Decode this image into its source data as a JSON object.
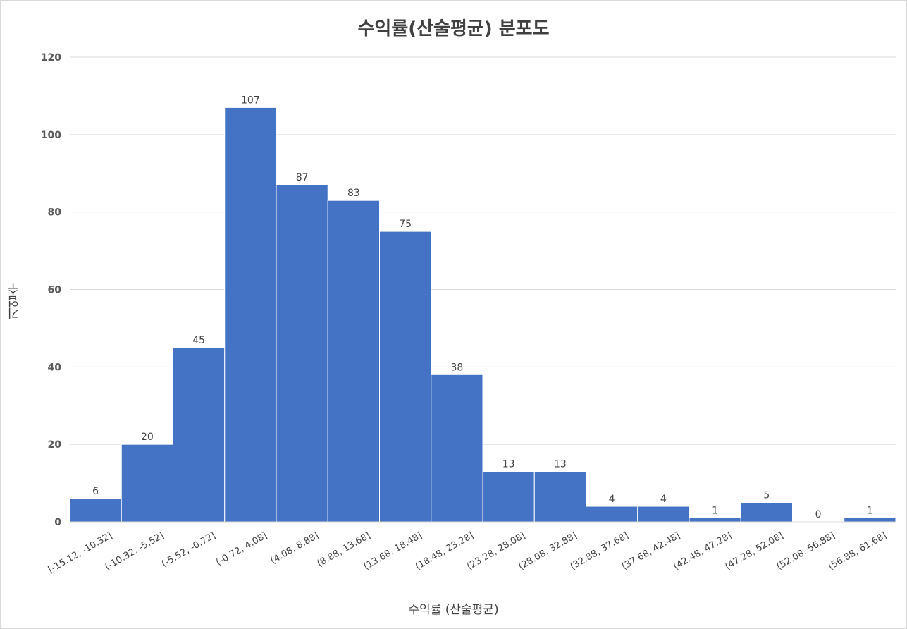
{
  "chart_data": {
    "type": "bar",
    "title": "수익률(산술평균) 분포도",
    "xlabel": "수익률 (산술평균)",
    "ylabel": "기업수",
    "categories": [
      "[-15.12, -10.32]",
      "(-10.32, -5.52]",
      "(-5.52, -0.72]",
      "(-0.72, 4.08]",
      "(4.08, 8.88]",
      "(8.88, 13.68]",
      "(13.68, 18.48]",
      "(18.48, 23.28]",
      "(23.28, 28.08]",
      "(28.08, 32.88]",
      "(32.88, 37.68]",
      "(37.68, 42.48]",
      "(42.48, 47.28]",
      "(47.28, 52.08]",
      "(52.08, 56.88]",
      "(56.88, 61.68]"
    ],
    "values": [
      6,
      20,
      45,
      107,
      87,
      83,
      75,
      38,
      13,
      13,
      4,
      4,
      1,
      5,
      0,
      1
    ],
    "ylim": [
      0,
      120
    ],
    "yticks": [
      0,
      20,
      40,
      60,
      80,
      100,
      120
    ],
    "grid": true,
    "legend": "none",
    "bar_color": "#4472C4",
    "data_labels": true
  }
}
